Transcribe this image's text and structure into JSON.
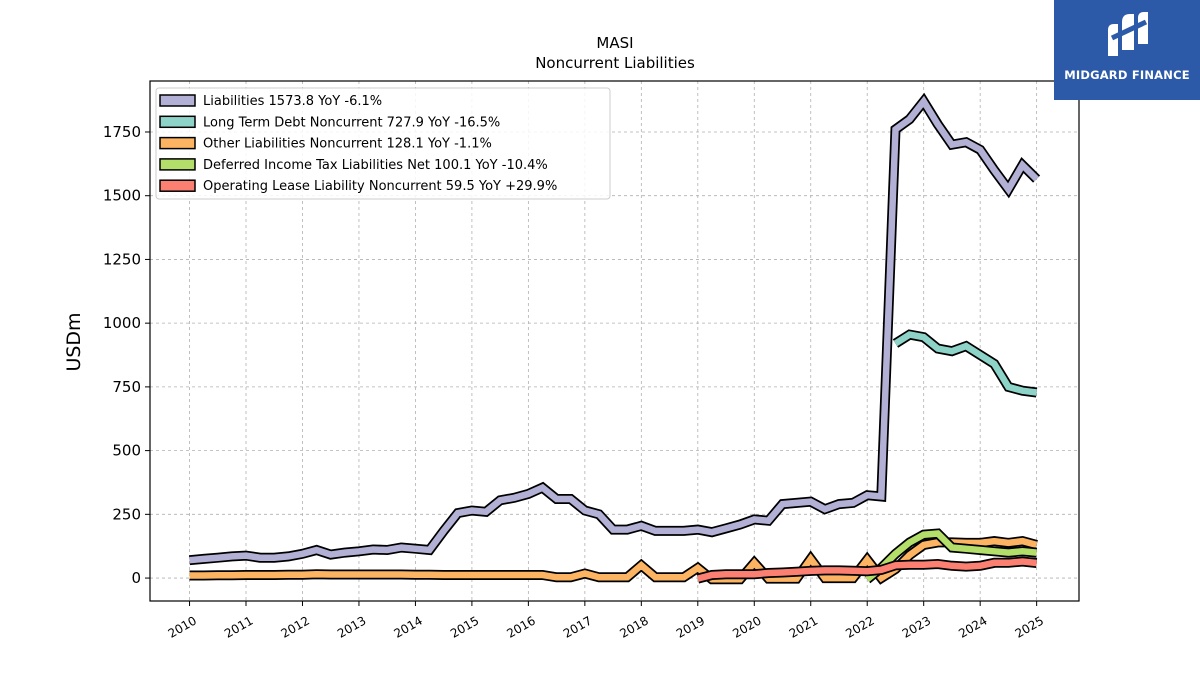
{
  "logo": {
    "text": "MIDGARD FINANCE",
    "color": "#2c5aa8"
  },
  "chart_data": {
    "type": "line",
    "title": "MASI",
    "subtitle": "Noncurrent  Liabilities",
    "ylabel": "USDm",
    "xlabel": "",
    "ylim": [
      -90,
      1950
    ],
    "xlim": [
      2009.3,
      2025.75
    ],
    "yticks": [
      0,
      250,
      500,
      750,
      1000,
      1250,
      1500,
      1750
    ],
    "xticks": [
      "2010",
      "2011",
      "2012",
      "2013",
      "2014",
      "2015",
      "2016",
      "2017",
      "2018",
      "2019",
      "2020",
      "2021",
      "2022",
      "2023",
      "2024",
      "2025"
    ],
    "grid": true,
    "legend_position": "top-left",
    "series": [
      {
        "name": "Liabilities",
        "legend": "Liabilities  1573.8 YoY -6.1%",
        "color": "#b3b0d6",
        "x": [
          2010.0,
          2010.25,
          2010.5,
          2010.75,
          2011.0,
          2011.25,
          2011.5,
          2011.75,
          2012.0,
          2012.25,
          2012.5,
          2012.75,
          2013.0,
          2013.25,
          2013.5,
          2013.75,
          2014.0,
          2014.25,
          2014.5,
          2014.75,
          2015.0,
          2015.25,
          2015.5,
          2015.75,
          2016.0,
          2016.25,
          2016.5,
          2016.75,
          2017.0,
          2017.25,
          2017.5,
          2017.75,
          2018.0,
          2018.25,
          2018.5,
          2018.75,
          2019.0,
          2019.25,
          2019.5,
          2019.75,
          2020.0,
          2020.25,
          2020.5,
          2020.75,
          2021.0,
          2021.25,
          2021.5,
          2021.75,
          2022.0,
          2022.25,
          2022.5,
          2022.75,
          2023.0,
          2023.25,
          2023.5,
          2023.75,
          2024.0,
          2024.25,
          2024.5,
          2024.75,
          2025.0
        ],
        "values": [
          70,
          75,
          80,
          85,
          88,
          80,
          80,
          85,
          95,
          110,
          92,
          100,
          105,
          112,
          110,
          120,
          115,
          110,
          185,
          255,
          265,
          260,
          305,
          315,
          330,
          355,
          310,
          310,
          265,
          250,
          190,
          190,
          205,
          185,
          185,
          185,
          190,
          180,
          195,
          210,
          230,
          225,
          290,
          295,
          300,
          270,
          290,
          295,
          325,
          320,
          1760,
          1800,
          1870,
          1780,
          1700,
          1710,
          1680,
          1600,
          1525,
          1620,
          1565
        ]
      },
      {
        "name": "Long Term Debt Noncurrent",
        "legend": "Long Term Debt Noncurrent  727.9 YoY -16.5%",
        "color": "#8dd3c7",
        "x": [
          2022.5,
          2022.75,
          2023.0,
          2023.25,
          2023.5,
          2023.75,
          2024.0,
          2024.25,
          2024.5,
          2024.75,
          2025.0
        ],
        "values": [
          920,
          955,
          945,
          900,
          890,
          910,
          875,
          840,
          750,
          735,
          728
        ]
      },
      {
        "name": "Other Liabilities Noncurrent",
        "legend": "Other Liabilities Noncurrent  128.1 YoY -1.1%",
        "color": "#fdb462",
        "x": [
          2010.0,
          2010.25,
          2010.5,
          2010.75,
          2011.0,
          2011.25,
          2011.5,
          2011.75,
          2012.0,
          2012.25,
          2012.5,
          2012.75,
          2013.0,
          2013.25,
          2013.5,
          2013.75,
          2014.0,
          2014.25,
          2014.5,
          2014.75,
          2015.0,
          2015.25,
          2015.5,
          2015.75,
          2016.0,
          2016.25,
          2016.5,
          2016.75,
          2017.0,
          2017.25,
          2017.5,
          2017.75,
          2018.0,
          2018.25,
          2018.5,
          2018.75,
          2019.0,
          2019.25,
          2019.5,
          2019.75,
          2020.0,
          2020.25,
          2020.5,
          2020.75,
          2021.0,
          2021.25,
          2021.5,
          2021.75,
          2022.0,
          2022.25,
          2022.5,
          2022.75,
          2023.0,
          2023.25,
          2023.5,
          2023.75,
          2024.0,
          2024.25,
          2024.5,
          2024.75,
          2025.0
        ],
        "values": [
          10,
          10,
          11,
          11,
          12,
          12,
          12,
          13,
          13,
          15,
          14,
          14,
          14,
          14,
          14,
          14,
          13,
          13,
          12,
          12,
          12,
          12,
          12,
          12,
          12,
          12,
          3,
          3,
          18,
          3,
          3,
          3,
          50,
          3,
          3,
          3,
          40,
          -5,
          -5,
          -5,
          60,
          -2,
          -2,
          -2,
          75,
          0,
          0,
          0,
          72,
          0,
          35,
          90,
          130,
          140,
          140,
          138,
          138,
          145,
          138,
          145,
          130
        ]
      },
      {
        "name": "Deferred Income Tax Liabilities Net",
        "legend": "Deferred Income Tax Liabilities Net  100.1 YoY -10.4%",
        "color": "#b3de69",
        "x": [
          2022.0,
          2022.25,
          2022.5,
          2022.75,
          2023.0,
          2023.25,
          2023.5,
          2023.75,
          2024.0,
          2024.25,
          2024.5,
          2024.75,
          2025.0
        ],
        "values": [
          -5,
          40,
          95,
          140,
          170,
          175,
          120,
          115,
          110,
          105,
          100,
          105,
          100
        ]
      },
      {
        "name": "Operating Lease Liability Noncurrent",
        "legend": "Operating Lease Liability Noncurrent  59.5 YoY +29.9%",
        "color": "#fb8072",
        "x": [
          2019.0,
          2019.25,
          2019.5,
          2019.75,
          2020.0,
          2020.25,
          2020.5,
          2020.75,
          2021.0,
          2021.25,
          2021.5,
          2021.75,
          2022.0,
          2022.25,
          2022.5,
          2022.75,
          2023.0,
          2023.25,
          2023.5,
          2023.75,
          2024.0,
          2024.25,
          2024.5,
          2024.75,
          2025.0
        ],
        "values": [
          -2,
          12,
          15,
          15,
          15,
          20,
          22,
          25,
          28,
          30,
          30,
          29,
          27,
          32,
          50,
          52,
          52,
          55,
          48,
          45,
          48,
          60,
          60,
          65,
          59
        ]
      }
    ]
  }
}
